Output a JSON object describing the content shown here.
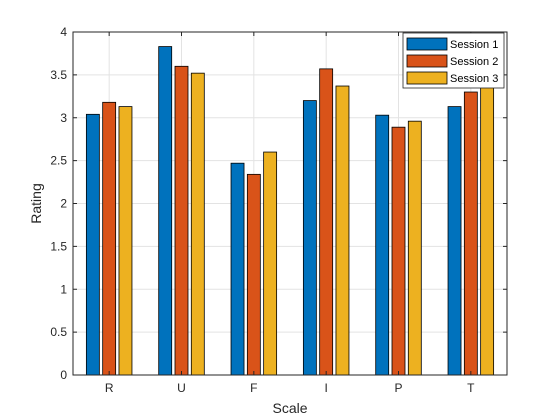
{
  "chart_data": {
    "type": "bar",
    "title": "",
    "xlabel": "Scale",
    "ylabel": "Rating",
    "categories": [
      "R",
      "U",
      "F",
      "I",
      "P",
      "T"
    ],
    "ylim": [
      0,
      4
    ],
    "yticks": [
      0,
      0.5,
      1,
      1.5,
      2,
      2.5,
      3,
      3.5,
      4
    ],
    "ytick_labels": [
      "0",
      "0.5",
      "1",
      "1.5",
      "2",
      "2.5",
      "3",
      "3.5",
      "4"
    ],
    "grid": true,
    "legend_position": "top-right",
    "series": [
      {
        "name": "Session 1",
        "color": "#0072BD",
        "values": [
          3.04,
          3.83,
          2.47,
          3.2,
          3.03,
          3.13
        ]
      },
      {
        "name": "Session 2",
        "color": "#D95319",
        "values": [
          3.18,
          3.6,
          2.34,
          3.57,
          2.89,
          3.3
        ]
      },
      {
        "name": "Session 3",
        "color": "#EDB120",
        "values": [
          3.13,
          3.52,
          2.6,
          3.37,
          2.96,
          3.37
        ]
      }
    ]
  }
}
